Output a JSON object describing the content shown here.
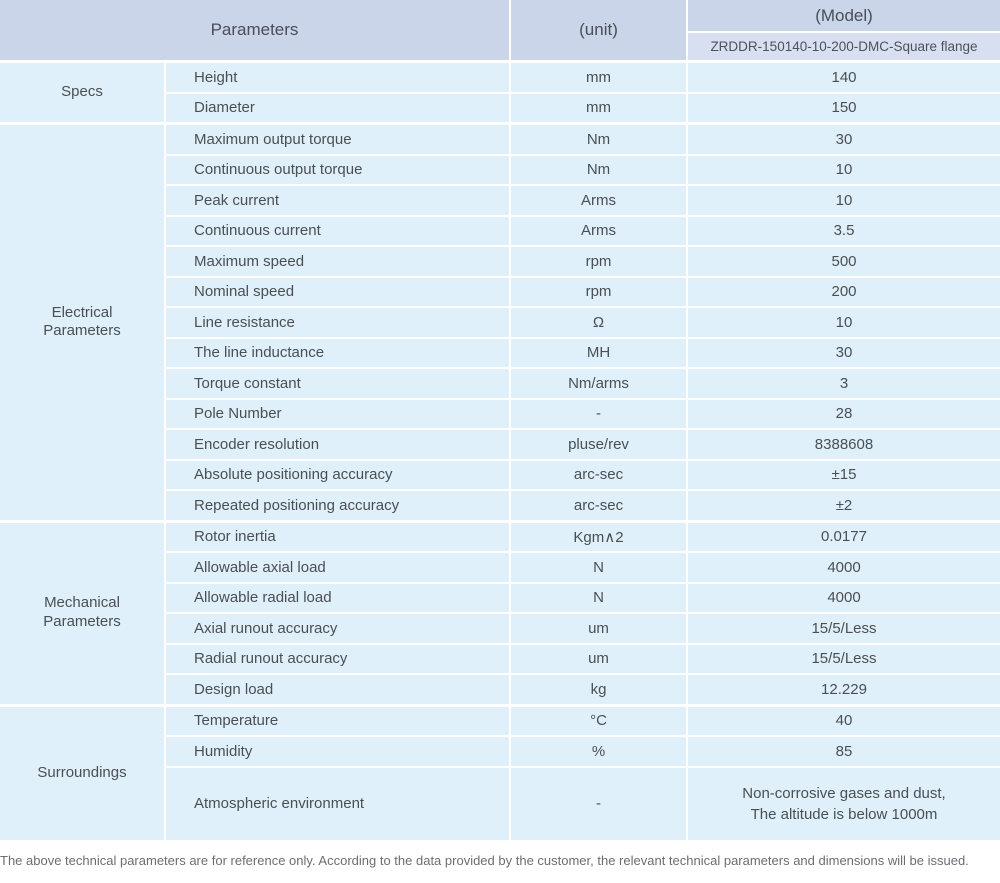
{
  "table": {
    "header": {
      "parameters": "Parameters",
      "unit": "(unit)",
      "model": "(Model)",
      "model_name": "ZRDDR-150140-10-200-DMC-Square flange"
    },
    "sections": [
      {
        "label": "Specs",
        "rows": [
          {
            "name": "Height",
            "unit": "mm",
            "value": "140"
          },
          {
            "name": "Diameter",
            "unit": "mm",
            "value": "150"
          }
        ]
      },
      {
        "label": "Electrical\nParameters",
        "rows": [
          {
            "name": "Maximum output torque",
            "unit": "Nm",
            "value": "30"
          },
          {
            "name": "Continuous output torque",
            "unit": "Nm",
            "value": "10"
          },
          {
            "name": "Peak current",
            "unit": "Arms",
            "value": "10"
          },
          {
            "name": "Continuous current",
            "unit": "Arms",
            "value": "3.5"
          },
          {
            "name": "Maximum speed",
            "unit": "rpm",
            "value": "500"
          },
          {
            "name": "Nominal speed",
            "unit": "rpm",
            "value": "200"
          },
          {
            "name": "Line resistance",
            "unit": "Ω",
            "value": "10"
          },
          {
            "name": "The line inductance",
            "unit": "MH",
            "value": "30"
          },
          {
            "name": "Torque constant",
            "unit": "Nm/arms",
            "value": "3"
          },
          {
            "name": "Pole Number",
            "unit": "-",
            "value": "28"
          },
          {
            "name": "Encoder resolution",
            "unit": "pluse/rev",
            "value": "8388608"
          },
          {
            "name": "Absolute positioning accuracy",
            "unit": "arc-sec",
            "value": "±15"
          },
          {
            "name": "Repeated positioning accuracy",
            "unit": "arc-sec",
            "value": "±2"
          }
        ]
      },
      {
        "label": "Mechanical\nParameters",
        "rows": [
          {
            "name": "Rotor inertia",
            "unit": "Kgm∧2",
            "value": "0.0177"
          },
          {
            "name": "Allowable axial load",
            "unit": "N",
            "value": "4000"
          },
          {
            "name": "Allowable radial load",
            "unit": "N",
            "value": "4000"
          },
          {
            "name": "Axial runout accuracy",
            "unit": "um",
            "value": "15/5/Less"
          },
          {
            "name": "Radial runout accuracy",
            "unit": "um",
            "value": "15/5/Less"
          },
          {
            "name": "Design load",
            "unit": "kg",
            "value": "12.229"
          }
        ]
      },
      {
        "label": "Surroundings",
        "rows": [
          {
            "name": "Temperature",
            "unit": "°C",
            "value": "40"
          },
          {
            "name": "Humidity",
            "unit": "%",
            "value": "85"
          },
          {
            "name": "Atmospheric environment",
            "unit": "-",
            "value": "Non-corrosive gases and dust,\nThe altitude is below 1000m"
          }
        ]
      }
    ],
    "colors": {
      "header_bg": "#cbd5e9",
      "model_row_bg": "#d7dff0",
      "row_bg": "#dff0fa",
      "separator": "#ffffff",
      "text": "#4b4f54",
      "footnote_text": "#6a6e73"
    }
  },
  "footnote": "The above technical parameters are for reference only. According to the data provided by the customer, the relevant technical parameters and dimensions will be issued."
}
